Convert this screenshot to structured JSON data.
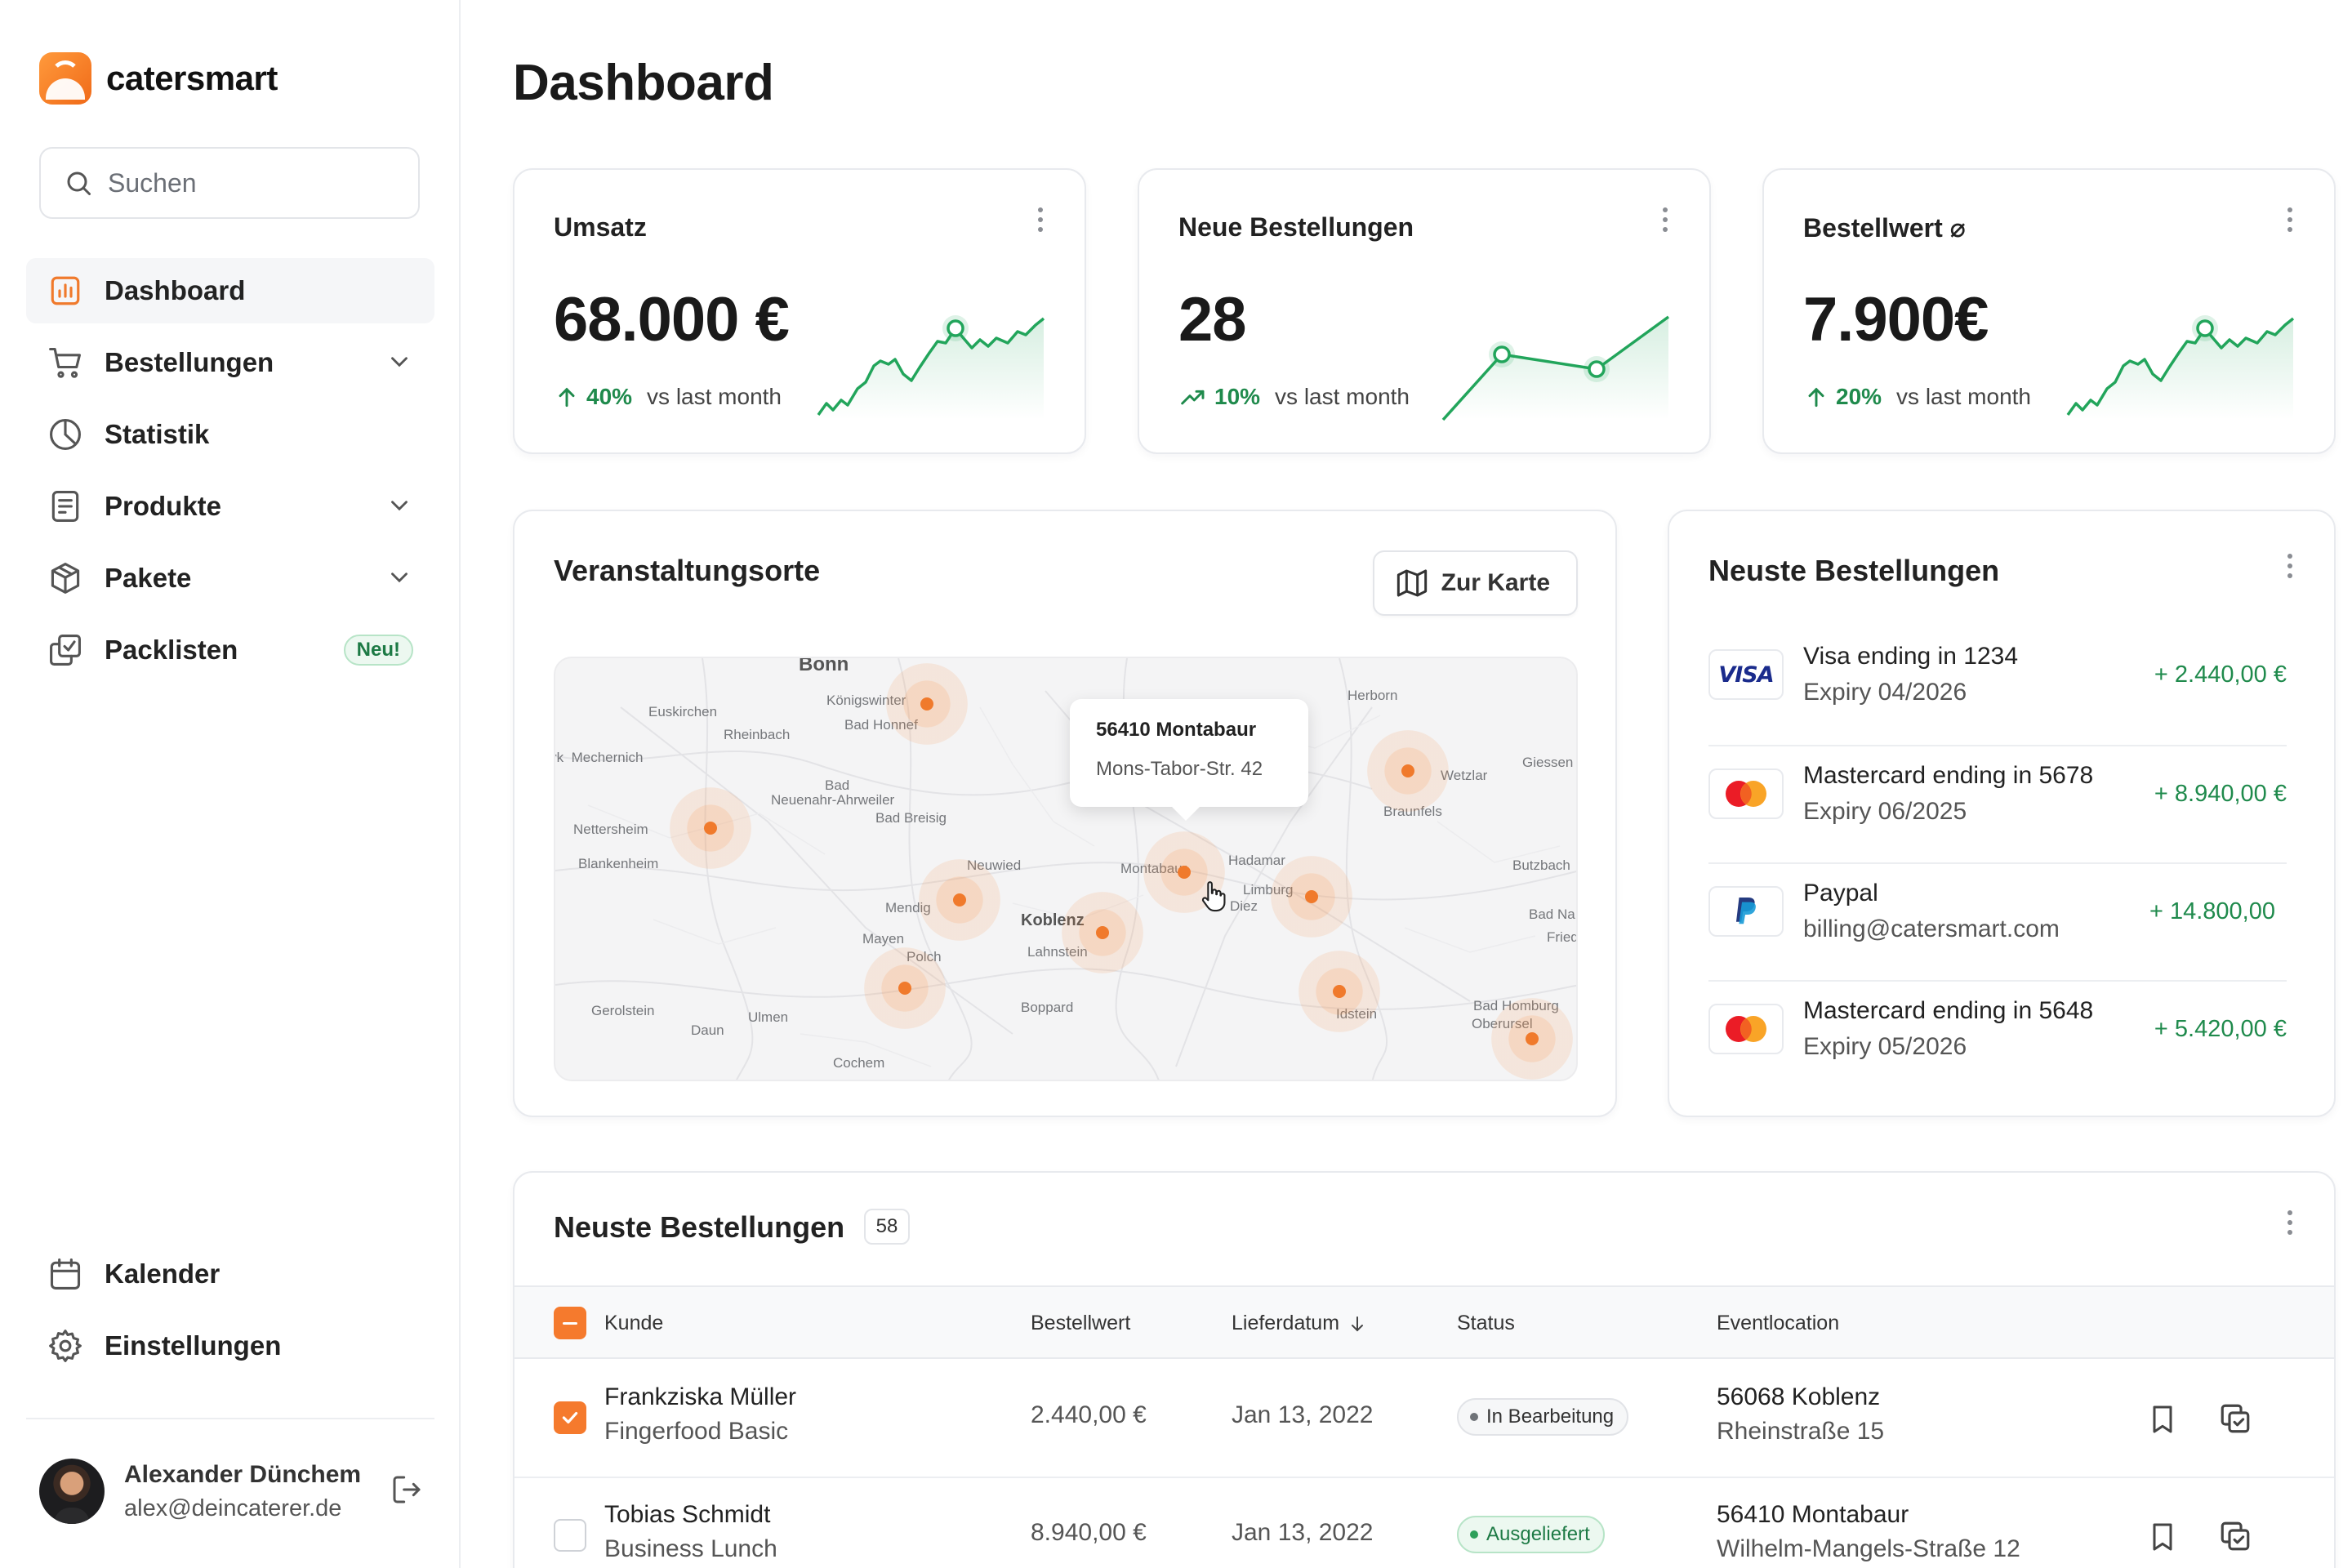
{
  "app": {
    "name": "catersmart"
  },
  "search": {
    "placeholder": "Suchen"
  },
  "nav": {
    "items": [
      {
        "label": "Dashboard",
        "icon": "bar-chart-icon",
        "active": true
      },
      {
        "label": "Bestellungen",
        "icon": "cart-icon",
        "has_children": true
      },
      {
        "label": "Statistik",
        "icon": "pie-chart-icon"
      },
      {
        "label": "Produkte",
        "icon": "document-icon",
        "has_children": true
      },
      {
        "label": "Pakete",
        "icon": "package-icon",
        "has_children": true
      },
      {
        "label": "Packlisten",
        "icon": "checklist-icon",
        "badge": "Neu!"
      }
    ],
    "bottom": [
      {
        "label": "Kalender",
        "icon": "calendar-icon"
      },
      {
        "label": "Einstellungen",
        "icon": "gear-icon"
      }
    ]
  },
  "user": {
    "name": "Alexander Dünchem",
    "email": "alex@deincaterer.de"
  },
  "page": {
    "title": "Dashboard"
  },
  "kpis": [
    {
      "title": "Umsatz",
      "value": "68.000 €",
      "delta": "40%",
      "compare": "vs last month"
    },
    {
      "title": "Neue Bestellungen",
      "value": "28",
      "delta": "10%",
      "compare": "vs last month"
    },
    {
      "title": "Bestellwert ⌀",
      "value": "7.900€",
      "delta": "20%",
      "compare": "vs last month"
    }
  ],
  "venues": {
    "title": "Veranstaltungsorte",
    "button": "Zur Karte",
    "tooltip": {
      "title": "56410 Montabaur",
      "address": "Mons-Tabor-Str. 42"
    },
    "towns": [
      "Bonn",
      "Königswinter",
      "Bad Honnef",
      "Euskirchen",
      "Rheinbach",
      "Mechernich",
      "Bad Neuenahr-Ahrweiler",
      "Bad Breisig",
      "Nettersheim",
      "Blankenheim",
      "Neuwied",
      "Montabaur",
      "Hadamar",
      "Limburg",
      "Diez",
      "Herborn",
      "Wetzlar",
      "Giessen",
      "Braunfels",
      "Butzbach",
      "Bad Na",
      "Fried",
      "Koblenz",
      "Lahnstein",
      "Mendig",
      "Mayen",
      "Polch",
      "Gerolstein",
      "Daun",
      "Ulmen",
      "Boppard",
      "Cochem",
      "Idstein",
      "Bad Homburg",
      "Oberursel"
    ]
  },
  "recent_payments": {
    "title": "Neuste Bestellungen",
    "items": [
      {
        "method": "Visa ending in 1234",
        "detail": "Expiry 04/2026",
        "amount": "+ 2.440,00 €",
        "logo": "visa"
      },
      {
        "method": "Mastercard ending in 5678",
        "detail": "Expiry 06/2025",
        "amount": "+ 8.940,00 €",
        "logo": "mastercard"
      },
      {
        "method": "Paypal",
        "detail": "billing@catersmart.com",
        "amount": "+ 14.800,00",
        "logo": "paypal"
      },
      {
        "method": "Mastercard ending in 5648",
        "detail": "Expiry 05/2026",
        "amount": "+ 5.420,00 €",
        "logo": "mastercard"
      }
    ]
  },
  "orders_table": {
    "title": "Neuste Bestellungen",
    "count": "58",
    "columns": [
      "Kunde",
      "Bestellwert",
      "Lieferdatum",
      "Status",
      "Eventlocation"
    ],
    "rows": [
      {
        "checked": true,
        "customer": "Frankziska Müller",
        "package": "Fingerfood Basic",
        "value": "2.440,00 €",
        "date": "Jan 13, 2022",
        "status": "In Bearbeitung",
        "status_type": "progress",
        "location": "56068 Koblenz",
        "street": "Rheinstraße 15"
      },
      {
        "checked": false,
        "customer": "Tobias Schmidt",
        "package": "Business Lunch",
        "value": "8.940,00 €",
        "date": "Jan 13, 2022",
        "status": "Ausgeliefert",
        "status_type": "done",
        "location": "56410 Montabaur",
        "street": "Wilhelm-Mangels-Straße 12"
      }
    ]
  },
  "colors": {
    "accent": "#f57a2d",
    "positive": "#1f8a4c",
    "chart_line": "#22a55b"
  }
}
